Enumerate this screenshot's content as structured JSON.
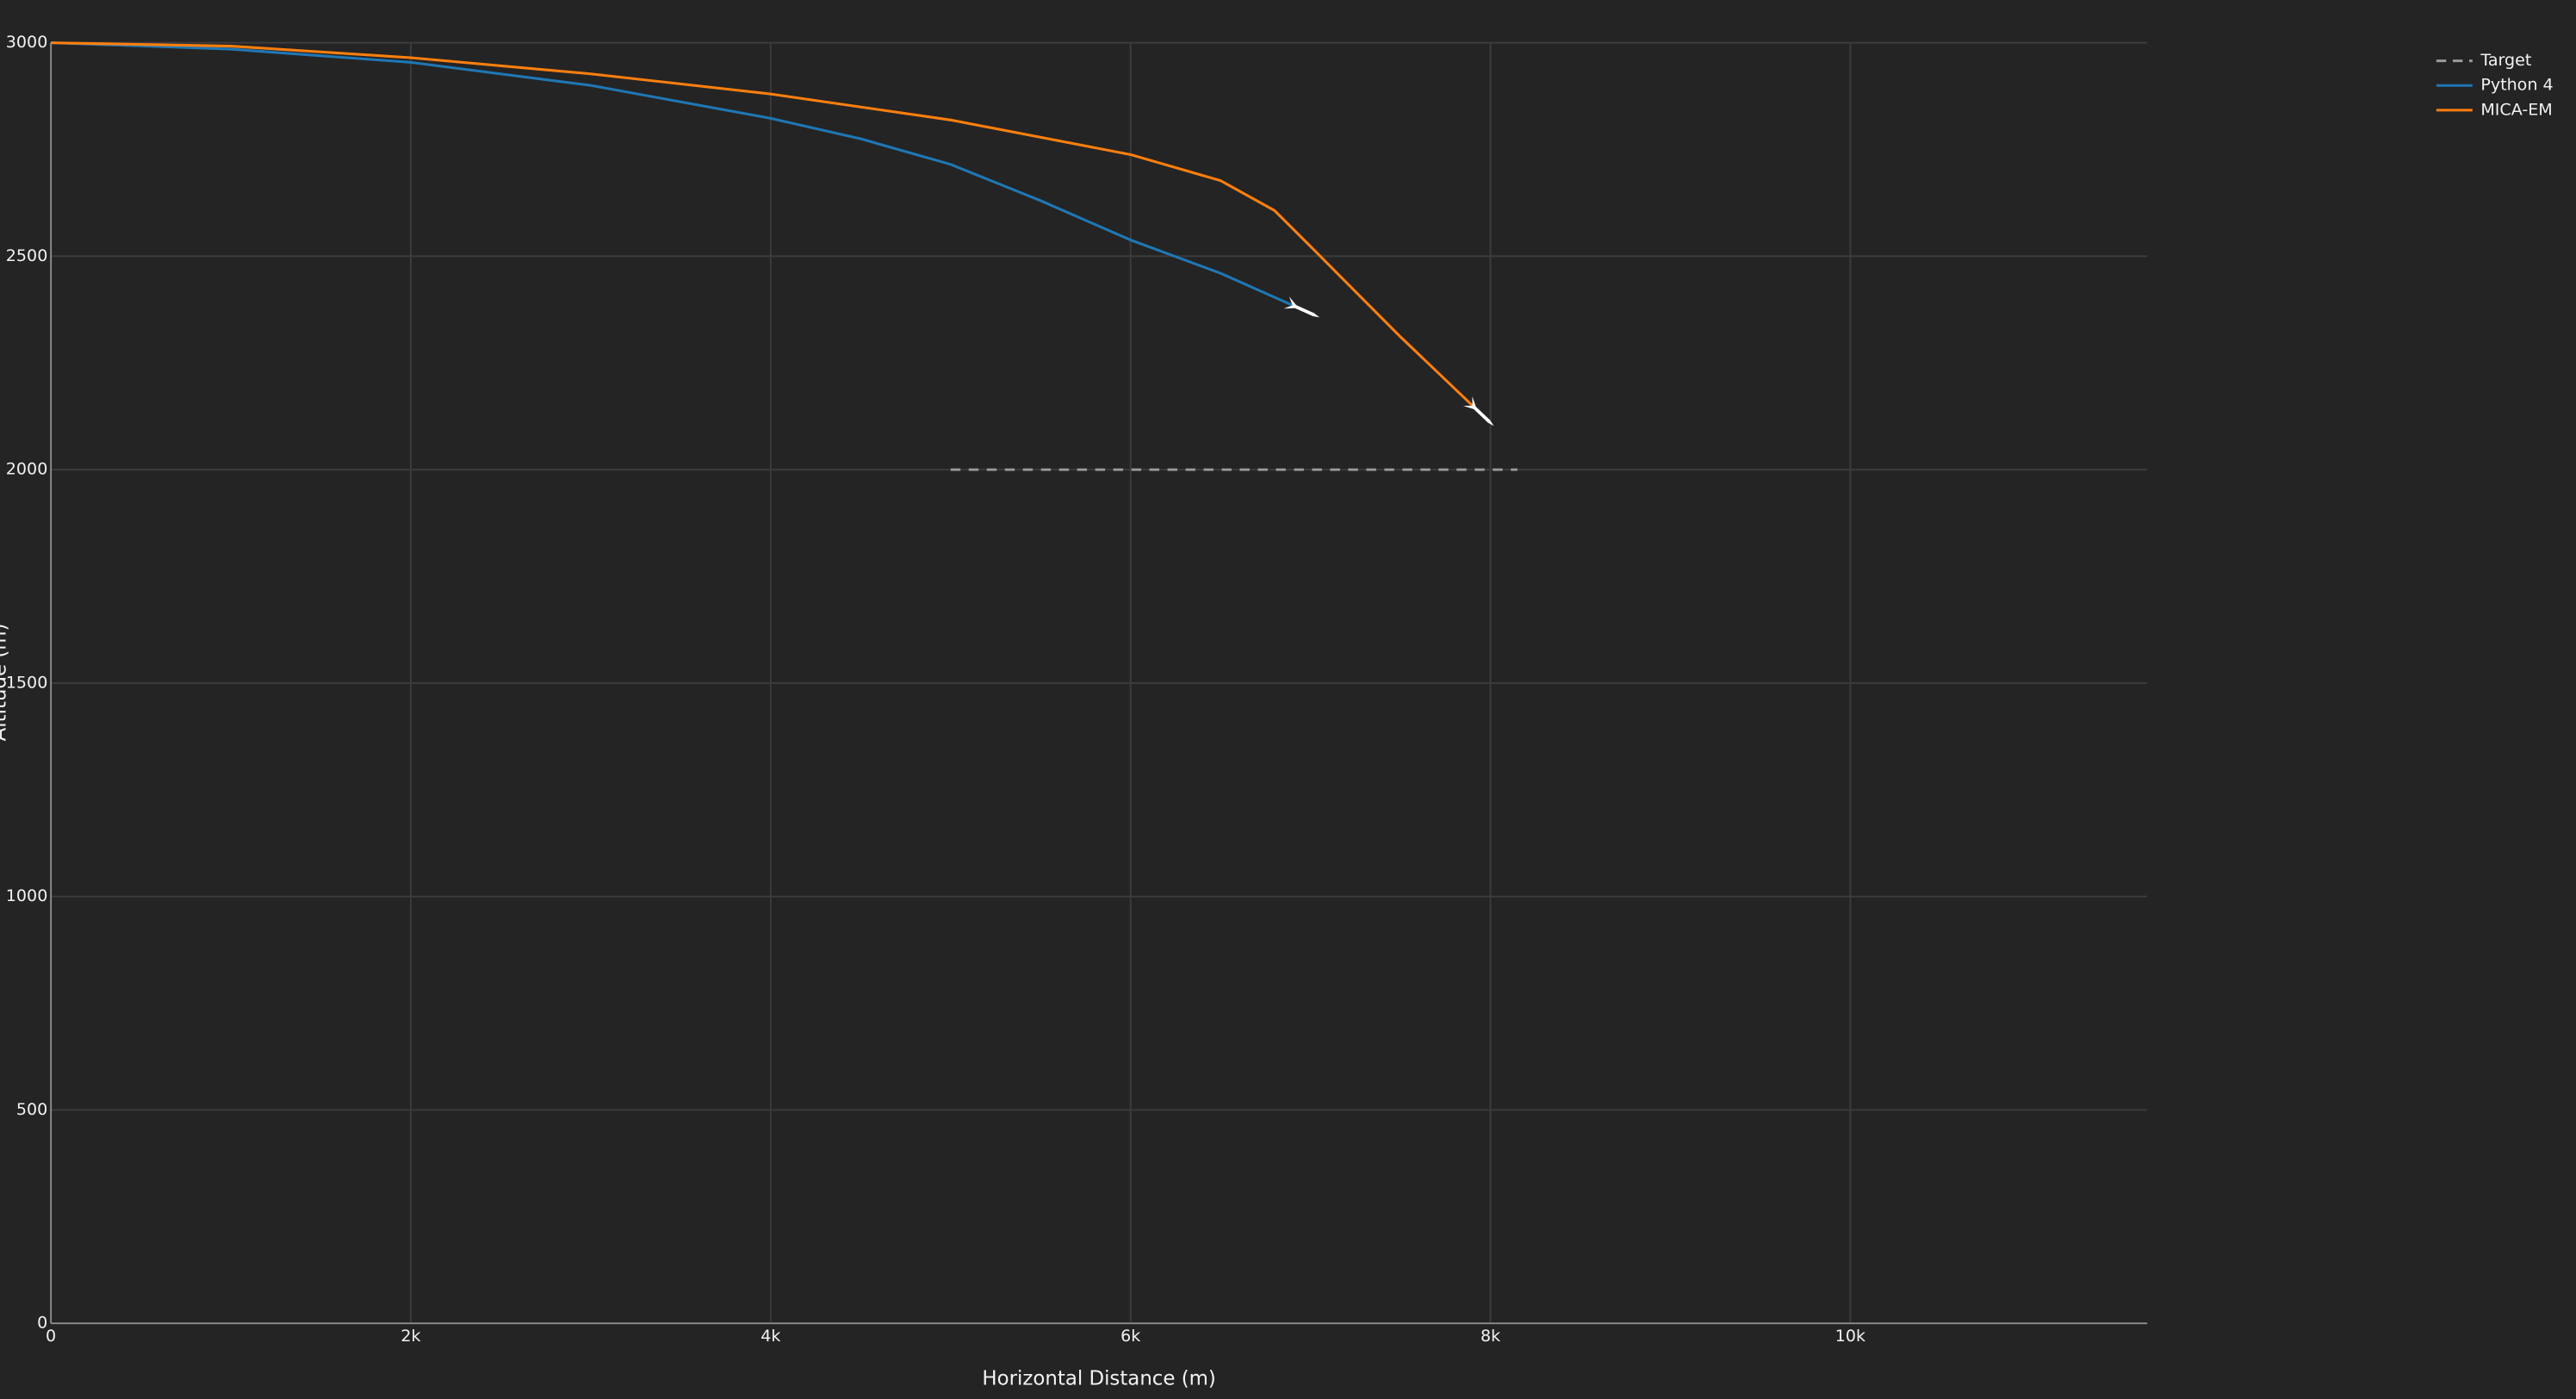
{
  "chart_data": {
    "type": "line",
    "x_label": "Horizontal Distance (m)",
    "y_label": "Altitude (m)",
    "xlim": [
      0,
      11650
    ],
    "ylim": [
      0,
      3000
    ],
    "xticks": [
      0,
      {
        "value": 2000,
        "label": "2k"
      },
      {
        "value": 4000,
        "label": "4k"
      },
      {
        "value": 6000,
        "label": "6k"
      },
      {
        "value": 8000,
        "label": "8k"
      },
      {
        "value": 10000,
        "label": "10k"
      }
    ],
    "yticks": [
      0,
      500,
      1000,
      1500,
      2000,
      2500,
      3000
    ],
    "grid": true,
    "legend": "top-right",
    "series": [
      {
        "name": "Target",
        "color": "#9a9a9a",
        "dash": true,
        "x": [
          5000,
          8150
        ],
        "values": [
          2000,
          2000
        ]
      },
      {
        "name": "Python 4",
        "color": "#1f77b4",
        "dash": false,
        "x": [
          0,
          1000,
          2000,
          3000,
          4000,
          4500,
          5000,
          5500,
          6000,
          6500,
          6900
        ],
        "values": [
          3000,
          2985,
          2954,
          2900,
          2823,
          2775,
          2715,
          2630,
          2538,
          2460,
          2385
        ]
      },
      {
        "name": "MICA-EM",
        "color": "#ff7f0e",
        "dash": false,
        "x": [
          0,
          1000,
          2000,
          3000,
          4000,
          5000,
          6000,
          6500,
          6800,
          7000,
          7200,
          7500,
          7900
        ],
        "values": [
          3000,
          2992,
          2965,
          2927,
          2880,
          2819,
          2738,
          2677,
          2607,
          2523,
          2438,
          2311,
          2150
        ]
      }
    ]
  }
}
